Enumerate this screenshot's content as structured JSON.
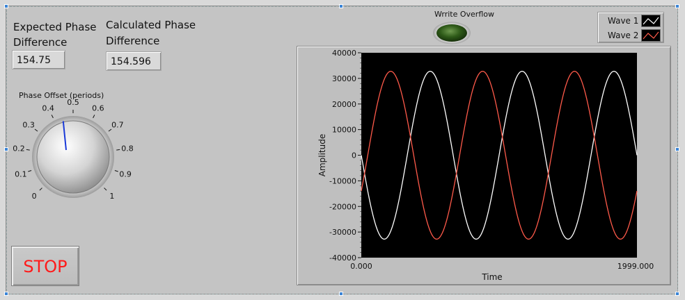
{
  "front_panel": {
    "expected": {
      "label_line1": "Expected Phase",
      "label_line2": "Difference",
      "value": "154.75"
    },
    "calculated": {
      "label_line1": "Calculated Phase",
      "label_line2": "Difference",
      "value": "154.596"
    },
    "knob": {
      "label": "Phase Offset (periods)",
      "value": 0.47,
      "ticks": [
        "0",
        "0.1",
        "0.2",
        "0.3",
        "0.4",
        "0.5",
        "0.6",
        "0.7",
        "0.8",
        "0.9",
        "1"
      ]
    },
    "stop_button": {
      "label": "STOP",
      "color": "#ff1a1a"
    },
    "led": {
      "label": "Wrrite Overflow",
      "state": "off",
      "color": "#2e5a18"
    },
    "legend": [
      {
        "name": "Wave 1",
        "color": "#ffffff"
      },
      {
        "name": "Wave 2",
        "color": "#ff5a4a"
      }
    ]
  },
  "chart_data": {
    "type": "line",
    "xlabel": "Time",
    "ylabel": "Amplitude",
    "xlim": [
      0,
      1999
    ],
    "ylim": [
      -40000,
      40000
    ],
    "x_tick_labels": [
      "0.000",
      "1999.000"
    ],
    "y_ticks": [
      40000,
      30000,
      20000,
      10000,
      0,
      -10000,
      -20000,
      -30000,
      -40000
    ],
    "y_tick_labels": [
      "40000",
      "30000",
      "20000",
      "10000",
      "0",
      "-10000",
      "-20000",
      "-30000",
      "-40000"
    ],
    "background": "#000000",
    "series": [
      {
        "name": "Wave 1",
        "color": "#ffffff",
        "amplitude": 32767,
        "cycles": 3.0,
        "phase_degrees": 180
      },
      {
        "name": "Wave 2",
        "color": "#ff5a4a",
        "amplitude": 32767,
        "cycles": 3.0,
        "phase_degrees": -25.25
      }
    ]
  }
}
